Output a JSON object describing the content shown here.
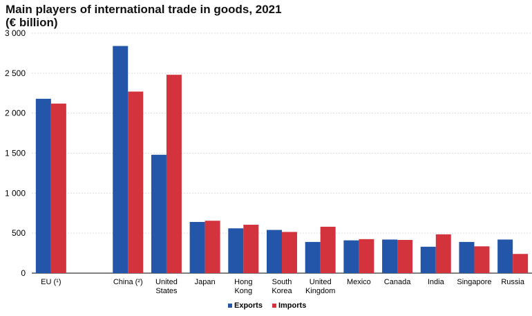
{
  "chart_data": {
    "type": "bar",
    "title": "Main players of international trade in goods, 2021",
    "subtitle": "(€ billion)",
    "categories": [
      "EU (¹)",
      "",
      "China (²)",
      "United States",
      "Japan",
      "Hong Kong",
      "South Korea",
      "United Kingdom",
      "Mexico",
      "Canada",
      "India",
      "Singapore",
      "Russia"
    ],
    "category_lines": [
      [
        "EU (¹)"
      ],
      [
        ""
      ],
      [
        "China (²)"
      ],
      [
        "United",
        "States"
      ],
      [
        "Japan"
      ],
      [
        "Hong",
        "Kong"
      ],
      [
        "South",
        "Korea"
      ],
      [
        "United",
        "Kingdom"
      ],
      [
        "Mexico"
      ],
      [
        "Canada"
      ],
      [
        "India"
      ],
      [
        "Singapore"
      ],
      [
        "Russia"
      ]
    ],
    "series": [
      {
        "name": "Exports",
        "color": "#2356a8",
        "values": [
          2180,
          null,
          2840,
          1480,
          640,
          560,
          540,
          390,
          410,
          420,
          330,
          390,
          420
        ]
      },
      {
        "name": "Imports",
        "color": "#d3333d",
        "values": [
          2120,
          null,
          2270,
          2480,
          655,
          605,
          515,
          580,
          425,
          415,
          485,
          335,
          240
        ]
      }
    ],
    "ylim": [
      0,
      3000
    ],
    "yticks": [
      0,
      500,
      1000,
      1500,
      2000,
      2500,
      3000
    ],
    "ytick_labels": [
      "0",
      "500",
      "1 000",
      "1 500",
      "2 000",
      "2 500",
      "3 000"
    ],
    "grid": true,
    "legend_position": "bottom"
  }
}
